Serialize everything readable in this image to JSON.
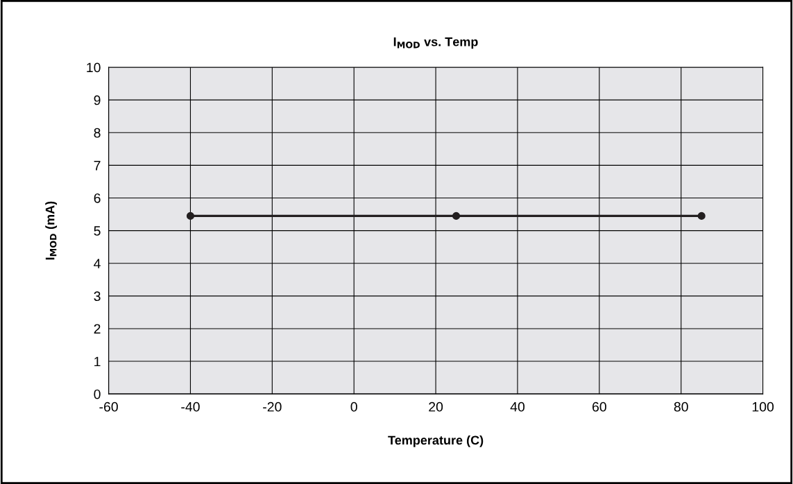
{
  "chart_data": {
    "type": "line",
    "title": "I$_{MOD}$ vs. Temp",
    "xlabel": "Temperature (C)",
    "ylabel": "I$_{MOD}$ (mA)",
    "x": [
      -40,
      25,
      85
    ],
    "series": [
      {
        "color": "#231f20",
        "values": [
          5.45,
          5.45,
          5.45
        ]
      }
    ],
    "xlim": [
      -60,
      100
    ],
    "xticks": [
      -60,
      -40,
      -20,
      0,
      20,
      40,
      60,
      80,
      100
    ],
    "ylim": [
      0,
      10
    ],
    "yticks": [
      0,
      1,
      2,
      3,
      4,
      5,
      6,
      7,
      8,
      9,
      10
    ],
    "grid": true,
    "marker": "circle",
    "line_style": "solid"
  }
}
